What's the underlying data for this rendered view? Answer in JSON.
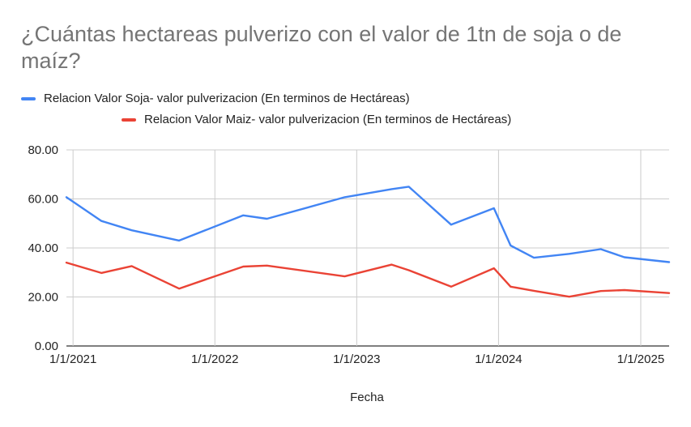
{
  "chart_data": {
    "type": "line",
    "title": "¿Cuántas hectareas pulverizo con el valor de 1tn de soja o de maíz?",
    "xlabel": "Fecha",
    "ylabel": "",
    "ylim": [
      0,
      80
    ],
    "yticks": [
      "0.00",
      "20.00",
      "40.00",
      "60.00",
      "80.00"
    ],
    "xticks": [
      "1/1/2021",
      "1/1/2022",
      "1/1/2023",
      "1/1/2024",
      "1/1/2025"
    ],
    "grid": true,
    "legend_position": "top",
    "series": [
      {
        "name": "Relacion Valor Soja- valor pulverizacion (En terminos de Hectáreas)",
        "color": "#4285f4",
        "points": [
          [
            "2020-12-15",
            60.7
          ],
          [
            "2021-03-15",
            51.0
          ],
          [
            "2021-06-01",
            47.2
          ],
          [
            "2021-10-01",
            43.0
          ],
          [
            "2022-03-15",
            53.3
          ],
          [
            "2022-05-15",
            51.9
          ],
          [
            "2022-12-01",
            60.7
          ],
          [
            "2023-04-01",
            64.0
          ],
          [
            "2023-05-15",
            65.0
          ],
          [
            "2023-09-01",
            49.5
          ],
          [
            "2023-12-20",
            56.2
          ],
          [
            "2024-02-01",
            41.0
          ],
          [
            "2024-04-01",
            36.0
          ],
          [
            "2024-07-01",
            37.6
          ],
          [
            "2024-09-20",
            39.5
          ],
          [
            "2024-11-20",
            36.2
          ],
          [
            "2025-03-15",
            34.2
          ]
        ]
      },
      {
        "name": "Relacion Valor Maiz- valor pulverizacion (En terminos de Hectáreas)",
        "color": "#ea4335",
        "points": [
          [
            "2020-12-15",
            34.0
          ],
          [
            "2021-03-15",
            29.8
          ],
          [
            "2021-06-01",
            32.6
          ],
          [
            "2021-10-01",
            23.4
          ],
          [
            "2022-03-15",
            32.4
          ],
          [
            "2022-05-15",
            32.8
          ],
          [
            "2022-12-01",
            28.4
          ],
          [
            "2023-04-01",
            33.2
          ],
          [
            "2023-05-15",
            30.9
          ],
          [
            "2023-09-01",
            24.2
          ],
          [
            "2023-12-20",
            31.7
          ],
          [
            "2024-02-01",
            24.2
          ],
          [
            "2024-04-01",
            22.5
          ],
          [
            "2024-07-01",
            20.1
          ],
          [
            "2024-09-20",
            22.4
          ],
          [
            "2024-11-20",
            22.8
          ],
          [
            "2025-03-15",
            21.6
          ]
        ]
      }
    ]
  }
}
